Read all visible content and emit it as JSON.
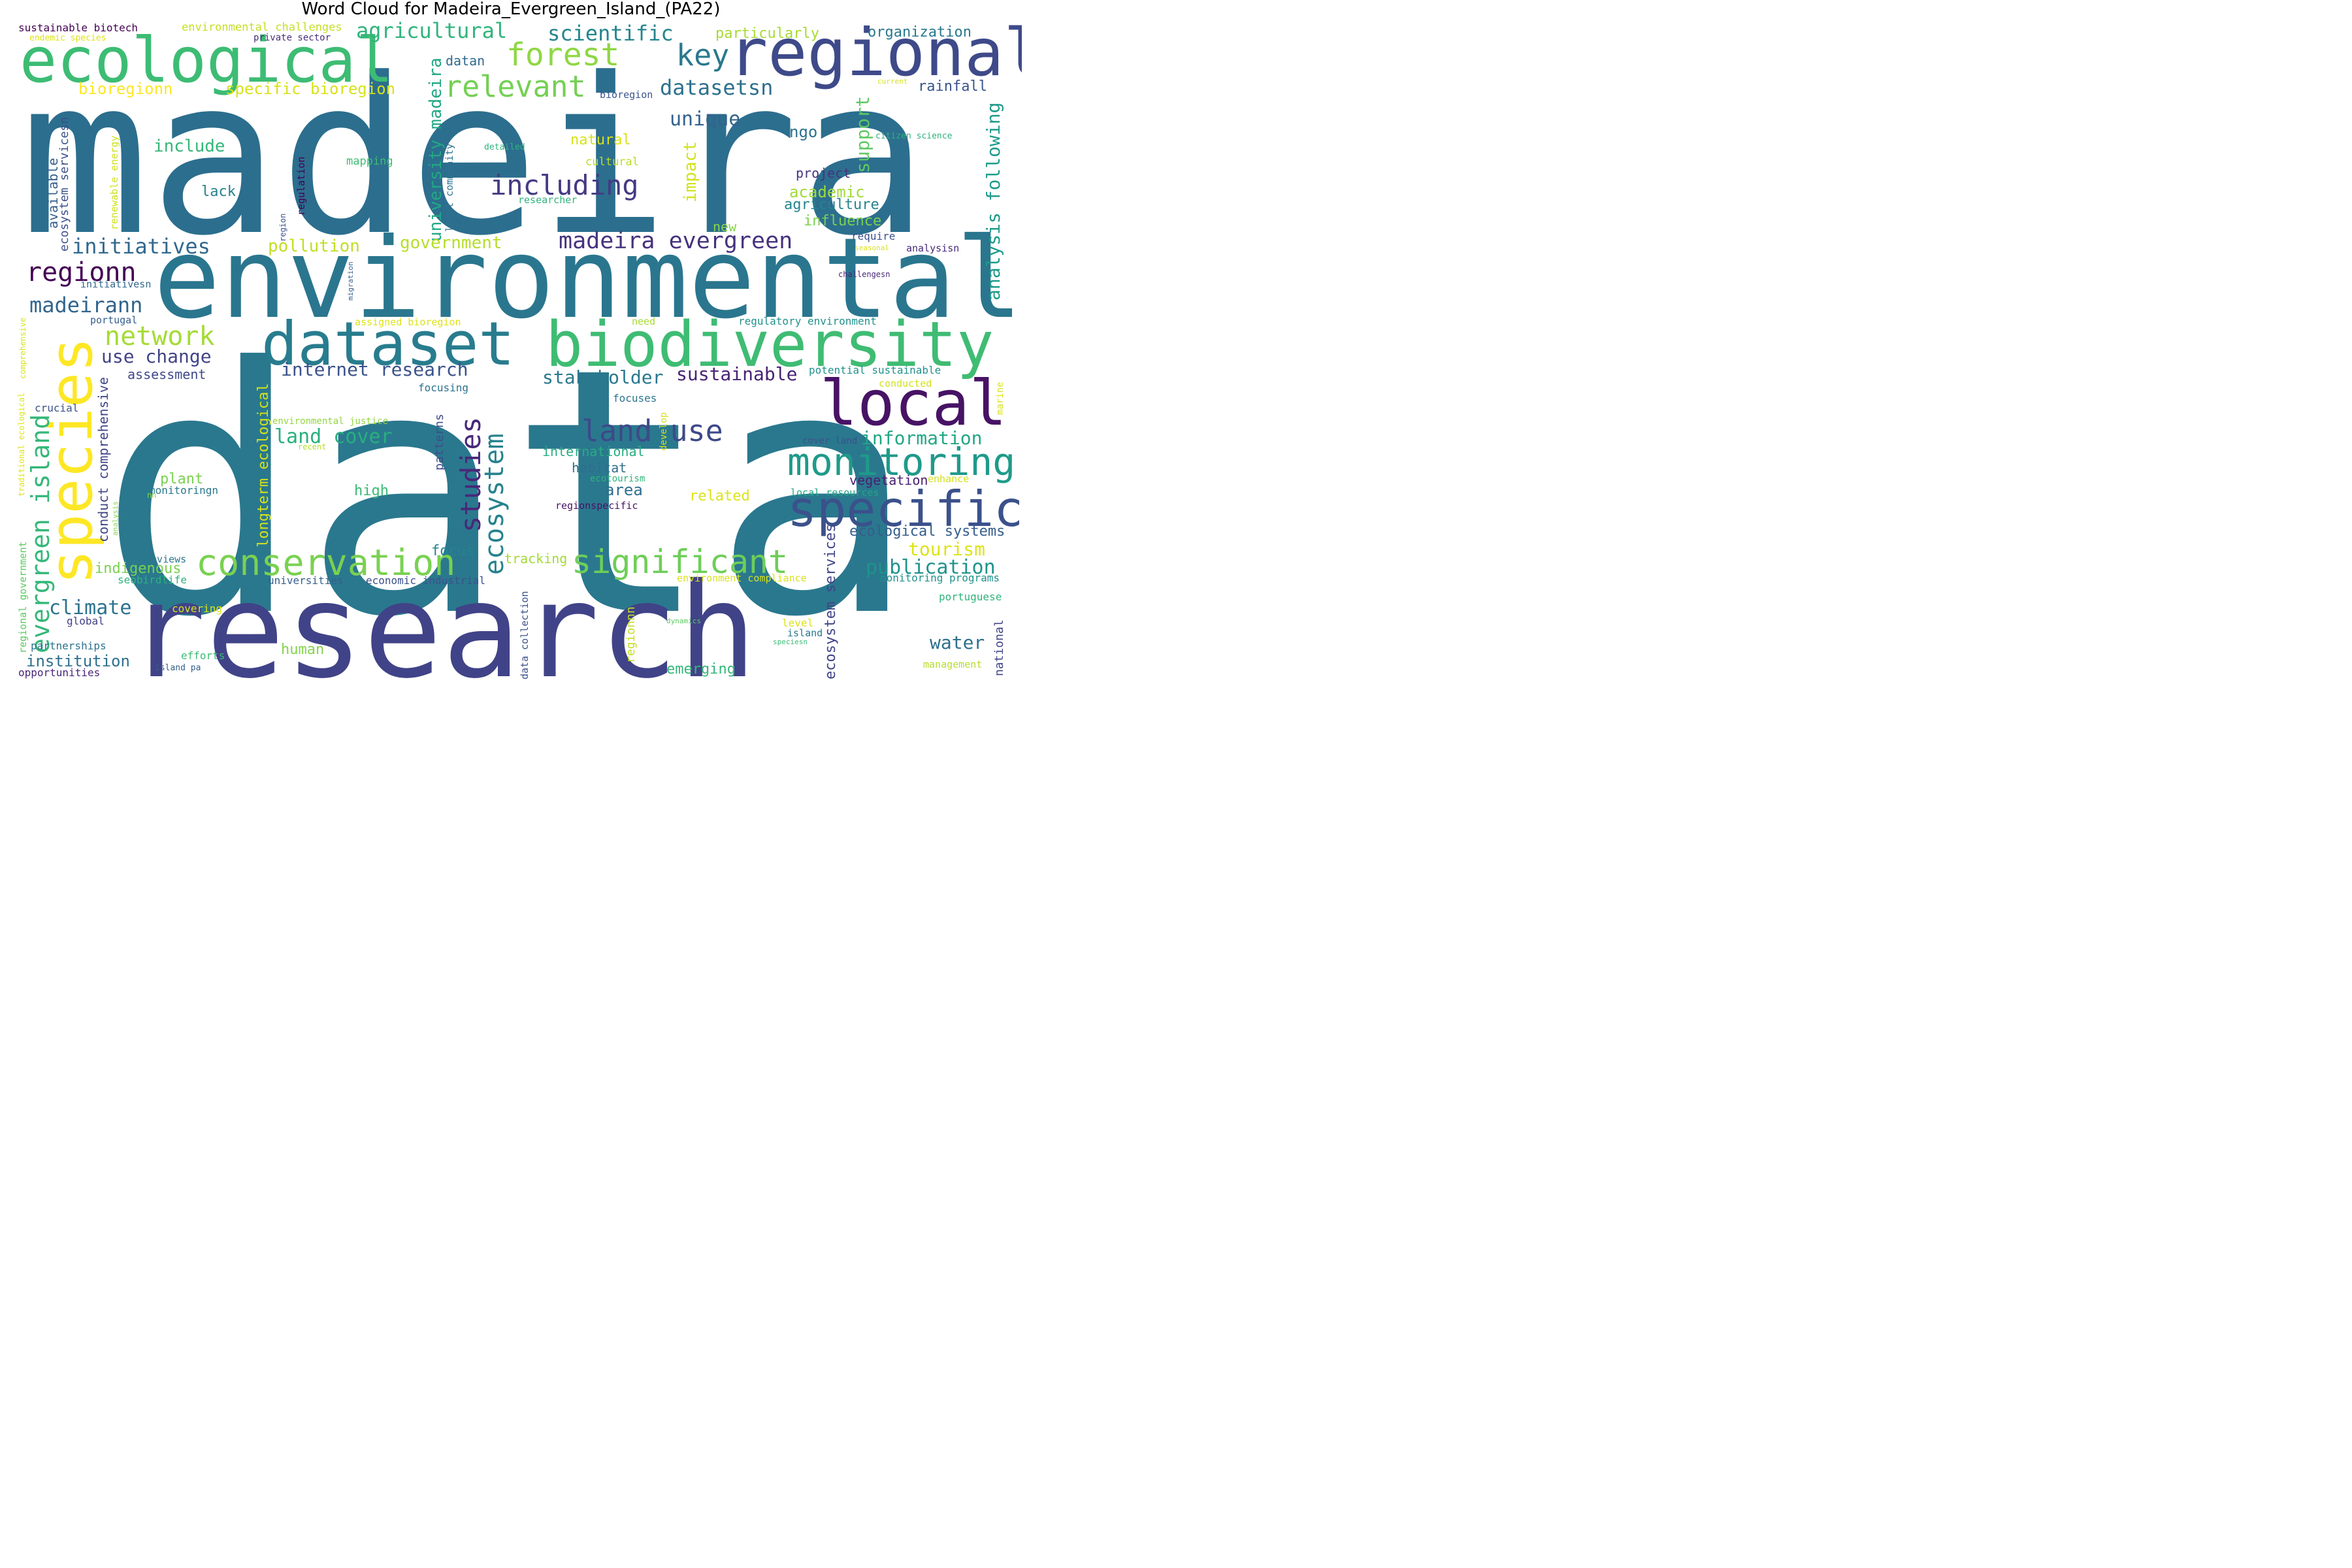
{
  "title": "Word Cloud for Madeira_Evergreen_Island_(PA22)",
  "words": [
    {
      "text": "data",
      "color": "#2a788e"
    },
    {
      "text": "madeira",
      "color": "#2c6e8e"
    },
    {
      "text": "research",
      "color": "#404387"
    },
    {
      "text": "environmental",
      "color": "#2a768e"
    },
    {
      "text": "regional",
      "color": "#3e4a89"
    },
    {
      "text": "ecological",
      "color": "#3dbc74"
    },
    {
      "text": "biodiversity",
      "color": "#3fbc73"
    },
    {
      "text": "dataset",
      "color": "#287c8e"
    },
    {
      "text": "local",
      "color": "#471365"
    },
    {
      "text": "species",
      "color": "#fde725"
    },
    {
      "text": "specific",
      "color": "#3b518b"
    },
    {
      "text": "monitoring",
      "color": "#1f9a8a"
    },
    {
      "text": "conservation",
      "color": "#7ad151"
    },
    {
      "text": "significant",
      "color": "#6ece58"
    },
    {
      "text": "forest",
      "color": "#8fd744"
    },
    {
      "text": "relevant",
      "color": "#75d054"
    },
    {
      "text": "key",
      "color": "#2a788e"
    },
    {
      "text": "land use",
      "color": "#3e4989"
    },
    {
      "text": "including",
      "color": "#443a83"
    },
    {
      "text": "studies",
      "color": "#482878"
    },
    {
      "text": "ecosystem",
      "color": "#26828e"
    },
    {
      "text": "network",
      "color": "#a5db36"
    },
    {
      "text": "regionn",
      "color": "#440154"
    },
    {
      "text": "madeira evergreen",
      "color": "#46327e"
    },
    {
      "text": "evergreen island",
      "color": "#35b779"
    },
    {
      "text": "scientific",
      "color": "#25858e"
    },
    {
      "text": "agricultural",
      "color": "#2fb47c"
    },
    {
      "text": "initiatives",
      "color": "#31688e"
    },
    {
      "text": "madeirann",
      "color": "#32658e"
    },
    {
      "text": "datasetsn",
      "color": "#2d708e"
    },
    {
      "text": "unique",
      "color": "#33638d"
    },
    {
      "text": "publication",
      "color": "#20928c"
    },
    {
      "text": "information",
      "color": "#22a785"
    },
    {
      "text": "land cover",
      "color": "#29af7f"
    },
    {
      "text": "stakeholder",
      "color": "#2a788e"
    },
    {
      "text": "sustainable",
      "color": "#482475"
    },
    {
      "text": "internet research",
      "color": "#3b528b"
    },
    {
      "text": "use change",
      "color": "#414487"
    },
    {
      "text": "climate",
      "color": "#2c728e"
    },
    {
      "text": "tourism",
      "color": "#dde318"
    },
    {
      "text": "support",
      "color": "#5ec962"
    },
    {
      "text": "analysis following",
      "color": "#1e9b8a"
    },
    {
      "text": "university madeira",
      "color": "#22a884"
    },
    {
      "text": "impact",
      "color": "#d2e21b"
    },
    {
      "text": "include",
      "color": "#35b779"
    },
    {
      "text": "pollution",
      "color": "#c0df25"
    },
    {
      "text": "government",
      "color": "#b5de2b"
    },
    {
      "text": "academic",
      "color": "#a0da39"
    },
    {
      "text": "agriculture",
      "color": "#25848e"
    },
    {
      "text": "influence",
      "color": "#7ad151"
    },
    {
      "text": "water",
      "color": "#2e6f8e"
    },
    {
      "text": "institution",
      "color": "#2d708e"
    },
    {
      "text": "bioregionn",
      "color": "#fde725"
    },
    {
      "text": "specific bioregion",
      "color": "#d8e219"
    },
    {
      "text": "rainfall",
      "color": "#3a548c"
    },
    {
      "text": "organization",
      "color": "#2a788e"
    },
    {
      "text": "particularly",
      "color": "#a8db34"
    },
    {
      "text": "ngo",
      "color": "#2c728e"
    },
    {
      "text": "project",
      "color": "#46337f"
    },
    {
      "text": "lack",
      "color": "#26828e"
    },
    {
      "text": "natural",
      "color": "#d8e219"
    },
    {
      "text": "cultural",
      "color": "#b8de29"
    },
    {
      "text": "mapping",
      "color": "#3fbc73"
    },
    {
      "text": "area",
      "color": "#2e6e8e"
    },
    {
      "text": "habitat",
      "color": "#2e6e8e"
    },
    {
      "text": "international",
      "color": "#27ad81"
    },
    {
      "text": "related",
      "color": "#dde318"
    },
    {
      "text": "vegetation",
      "color": "#481f70"
    },
    {
      "text": "ecological systems",
      "color": "#365d8d"
    },
    {
      "text": "ecosystem services",
      "color": "#414487"
    },
    {
      "text": "high",
      "color": "#3bbb75"
    },
    {
      "text": "plant",
      "color": "#7ad151"
    },
    {
      "text": "focus",
      "color": "#25838e"
    },
    {
      "text": "tracking",
      "color": "#a2da37"
    },
    {
      "text": "indigenous",
      "color": "#7ad151"
    },
    {
      "text": "human",
      "color": "#84d44b"
    },
    {
      "text": "emerging",
      "color": "#35b779"
    },
    {
      "text": "longterm ecological",
      "color": "#d5e21a"
    },
    {
      "text": "conduct comprehensive",
      "color": "#404688"
    },
    {
      "text": "assessment",
      "color": "#3f4889"
    },
    {
      "text": "available",
      "color": "#35608d"
    },
    {
      "text": "ecosystem servicesn",
      "color": "#3c4f8a"
    },
    {
      "text": "renewable energy",
      "color": "#cde11d"
    },
    {
      "text": "regulation",
      "color": "#440154"
    },
    {
      "text": "local community",
      "color": "#2c738e"
    },
    {
      "text": "datan",
      "color": "#306a8e"
    },
    {
      "text": "bioregion",
      "color": "#3b528b"
    },
    {
      "text": "detailed",
      "color": "#2fb47c"
    },
    {
      "text": "citizen science",
      "color": "#2db27d"
    },
    {
      "text": "current",
      "color": "#d5e21a"
    },
    {
      "text": "researcher",
      "color": "#2fb47c"
    },
    {
      "text": "seasonal",
      "color": "#dae319"
    },
    {
      "text": "require",
      "color": "#3b528b"
    },
    {
      "text": "analysisn",
      "color": "#472a7a"
    },
    {
      "text": "new",
      "color": "#84d44b"
    },
    {
      "text": "challengesn",
      "color": "#482878"
    },
    {
      "text": "initiativesn",
      "color": "#31688e"
    },
    {
      "text": "portugal",
      "color": "#355e8d"
    },
    {
      "text": "assigned bioregion",
      "color": "#dde318"
    },
    {
      "text": "need",
      "color": "#a8db34"
    },
    {
      "text": "regulatory environment",
      "color": "#20928c"
    },
    {
      "text": "potential sustainable",
      "color": "#21918c"
    },
    {
      "text": "conducted",
      "color": "#d2e21b"
    },
    {
      "text": "focusing",
      "color": "#2c728e"
    },
    {
      "text": "focuses",
      "color": "#2b758e"
    },
    {
      "text": "crucial",
      "color": "#3b528b"
    },
    {
      "text": "environmental justice",
      "color": "#93d741"
    },
    {
      "text": "recent",
      "color": "#b5de2b"
    },
    {
      "text": "patterns",
      "color": "#3e4c8a"
    },
    {
      "text": "develop",
      "color": "#d8e219"
    },
    {
      "text": "cover land",
      "color": "#3b518b"
    },
    {
      "text": "marine",
      "color": "#dae319"
    },
    {
      "text": "enhance",
      "color": "#d2e21b"
    },
    {
      "text": "ecotourism",
      "color": "#2fb47c"
    },
    {
      "text": "monitoringn",
      "color": "#2a788e"
    },
    {
      "text": "regionspecific",
      "color": "#471365"
    },
    {
      "text": "local resources",
      "color": "#21a685"
    },
    {
      "text": "reviews",
      "color": "#2a788e"
    },
    {
      "text": "seobirdlife",
      "color": "#2db27d"
    },
    {
      "text": "universities",
      "color": "#35608d"
    },
    {
      "text": "economic industrial",
      "color": "#3b518b"
    },
    {
      "text": "environment compliance",
      "color": "#d8e219"
    },
    {
      "text": "monitoring programs",
      "color": "#20928c"
    },
    {
      "text": "portuguese",
      "color": "#2fb47c"
    },
    {
      "text": "national",
      "color": "#414487"
    },
    {
      "text": "management",
      "color": "#b5de2b"
    },
    {
      "text": "island",
      "color": "#2a788e"
    },
    {
      "text": "level",
      "color": "#dde318"
    },
    {
      "text": "speciesn",
      "color": "#3bbb75"
    },
    {
      "text": "dynamics",
      "color": "#5ec962"
    },
    {
      "text": "data collection",
      "color": "#3b518b"
    },
    {
      "text": "regionnn",
      "color": "#c2df23"
    },
    {
      "text": "covering",
      "color": "#dde318"
    },
    {
      "text": "efforts",
      "color": "#3dbc74"
    },
    {
      "text": "island pa",
      "color": "#355f8d"
    },
    {
      "text": "global",
      "color": "#424086"
    },
    {
      "text": "partnerships",
      "color": "#2c728e"
    },
    {
      "text": "opportunities",
      "color": "#482677"
    },
    {
      "text": "regional government",
      "color": "#5ec962"
    },
    {
      "text": "traditional ecological",
      "color": "#dde318"
    },
    {
      "text": "comprehensive",
      "color": "#d8e219"
    },
    {
      "text": "analysis",
      "color": "#84d44b"
    },
    {
      "text": "nn",
      "color": "#84d44b"
    },
    {
      "text": "sustainable biotech",
      "color": "#440154"
    },
    {
      "text": "environmental challenges",
      "color": "#c5e021"
    },
    {
      "text": "endemic species",
      "color": "#dde318"
    },
    {
      "text": "private sector",
      "color": "#472d7b"
    },
    {
      "text": "region",
      "color": "#3b528b"
    },
    {
      "text": "migration",
      "color": "#35608d"
    }
  ]
}
